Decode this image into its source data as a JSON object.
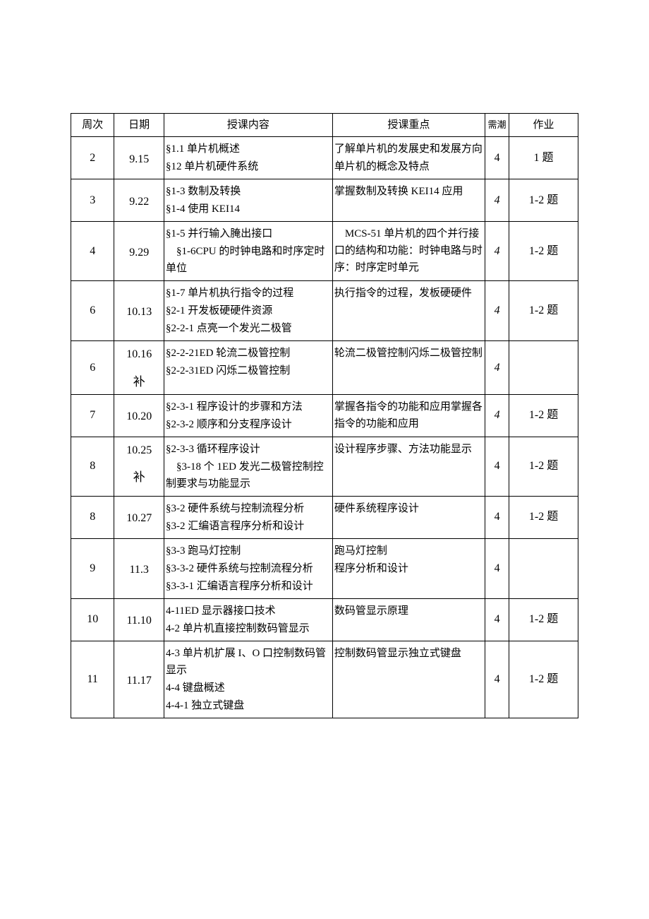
{
  "headers": {
    "week": "周次",
    "date": "日期",
    "content": "授课内容",
    "focus": "授课重点",
    "hours": "需潮",
    "homework": "作业"
  },
  "rows": [
    {
      "week": "2",
      "date": "9.15",
      "content_lines": [
        "§1.1 单片机概述",
        "§12 单片机硬件系统"
      ],
      "focus_lines": [
        "了解单片机的发展史和发展方向",
        "单片机的概念及特点"
      ],
      "hours": "4",
      "hours_italic": false,
      "homework": "1 题"
    },
    {
      "week": "3",
      "date": "9.22",
      "content_lines": [
        "§1-3 数制及转换",
        "§1-4 使用 KEI14"
      ],
      "focus_lines": [
        "掌握数制及转换 KEI14 应用"
      ],
      "hours": "4",
      "hours_italic": true,
      "homework": "1-2 题"
    },
    {
      "week": "4",
      "date": "9.29",
      "content_lines": [
        "§1-5 并行输入腌出接口",
        "　§1-6CPU 的时钟电路和时序定时单位"
      ],
      "focus_lines": [
        "　MCS-51 单片机的四个并行接口的结构和功能：时钟电路与时序：时序定时单元"
      ],
      "hours": "4",
      "hours_italic": true,
      "homework": "1-2 题"
    },
    {
      "week": "6",
      "date": "10.13",
      "content_lines": [
        "§1-7 单片机执行指令的过程",
        "§2-1 开发板硬硬件资源",
        "§2-2-1 点亮一个发光二极管"
      ],
      "focus_lines": [
        "执行指令的过程，发板硬硬件"
      ],
      "hours": "4",
      "hours_italic": true,
      "homework": "1-2 题"
    },
    {
      "week": "6",
      "date": "10.16",
      "date_suffix": "补",
      "content_lines": [
        "§2-2-21ED 轮流二极管控制",
        "§2-2-31ED 闪烁二极管控制"
      ],
      "focus_lines": [
        "轮流二极管控制闪烁二极管控制"
      ],
      "hours": "4",
      "hours_italic": true,
      "homework": ""
    },
    {
      "week": "7",
      "date": "10.20",
      "content_lines": [
        "§2-3-1 程序设计的步骤和方法",
        "§2-3-2 顺序和分支程序设计"
      ],
      "focus_lines": [
        "掌握各指令的功能和应用掌握各指令的功能和应用"
      ],
      "hours": "4",
      "hours_italic": true,
      "homework": "1-2 题"
    },
    {
      "week": "8",
      "date": "10.25",
      "date_suffix": "补",
      "content_lines": [
        "§2-3-3 循环程序设计",
        "　§3-18 个 1ED 发光二极管控制控制要求与功能显示"
      ],
      "focus_lines": [
        "设计程序步骤、方法功能显示"
      ],
      "hours": "4",
      "hours_italic": false,
      "homework": "1-2 题"
    },
    {
      "week": "8",
      "date": "10.27",
      "content_lines": [
        "§3-2 硬件系统与控制流程分析",
        "§3-2 汇编语言程序分析和设计"
      ],
      "focus_lines": [
        "硬件系统程序设计"
      ],
      "hours": "4",
      "hours_italic": false,
      "homework": "1-2 题"
    },
    {
      "week": "9",
      "date": "11.3",
      "content_lines": [
        "§3-3 跑马灯控制",
        "§3-3-2 硬件系统与控制流程分析",
        "§3-3-1 汇编语言程序分析和设计"
      ],
      "focus_lines": [
        "跑马灯控制",
        "程序分析和设计"
      ],
      "hours": "4",
      "hours_italic": false,
      "homework": ""
    },
    {
      "week": "10",
      "date": "11.10",
      "content_lines": [
        "4-11ED 显示器接口技术",
        "4-2 单片机直接控制数码管显示"
      ],
      "focus_lines": [
        "数码管显示原理"
      ],
      "hours": "4",
      "hours_italic": false,
      "homework": "1-2 题"
    },
    {
      "week": "11",
      "date": "11.17",
      "content_lines": [
        "4-3 单片机扩展 I、O 口控制数码管显示",
        "4-4 键盘概述",
        "4-4-1 独立式键盘"
      ],
      "focus_lines": [
        "控制数码管显示独立式键盘"
      ],
      "hours": "4",
      "hours_italic": false,
      "homework": "1-2 题"
    }
  ]
}
